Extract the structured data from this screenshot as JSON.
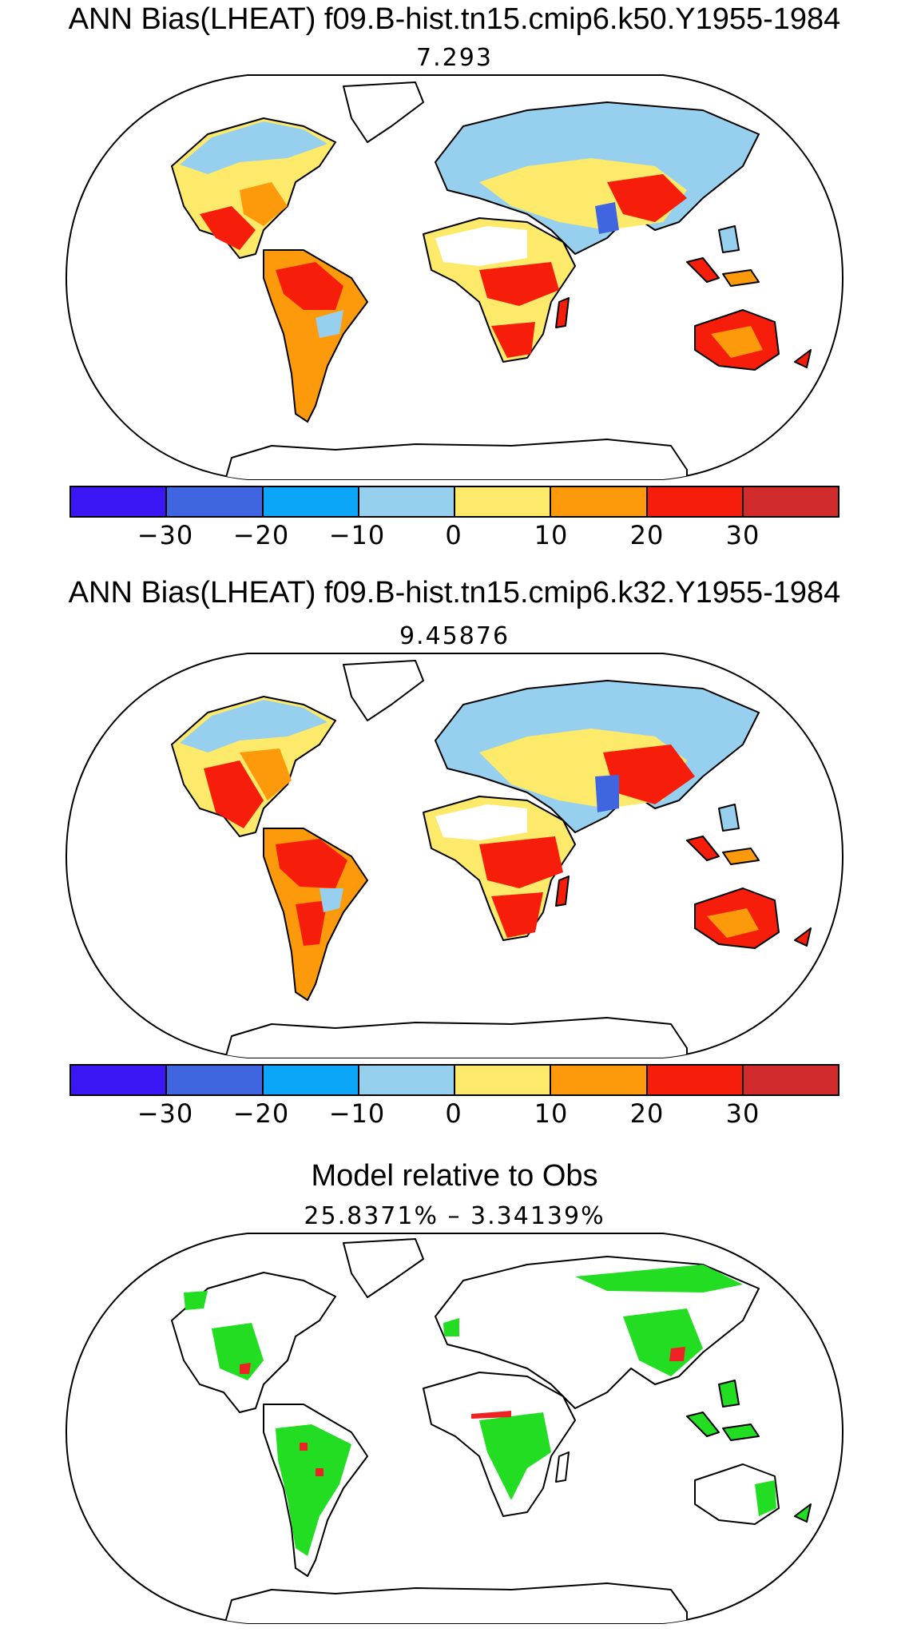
{
  "panels": [
    {
      "title": "ANN Bias(LHEAT) f09.B-hist.tn15.cmip6.k50.Y1955-1984",
      "stat": "7.293"
    },
    {
      "title": "ANN Bias(LHEAT) f09.B-hist.tn15.cmip6.k32.Y1955-1984",
      "stat": "9.45876"
    },
    {
      "title": "Model relative to Obs",
      "stat": "25.8371%  –  3.34139%"
    }
  ],
  "colorbar": {
    "colors": [
      "#3a17f4",
      "#3f66e0",
      "#0ba6f7",
      "#97d0ee",
      "#fdea6a",
      "#fd9a0b",
      "#f61e0a",
      "#d22b2b"
    ],
    "labels": [
      "−30",
      "−20",
      "−10",
      "0",
      "10",
      "20",
      "30"
    ]
  },
  "map_colors": {
    "land_outline": "#000000",
    "good": "#22dd22",
    "bad": "#ee2222"
  }
}
